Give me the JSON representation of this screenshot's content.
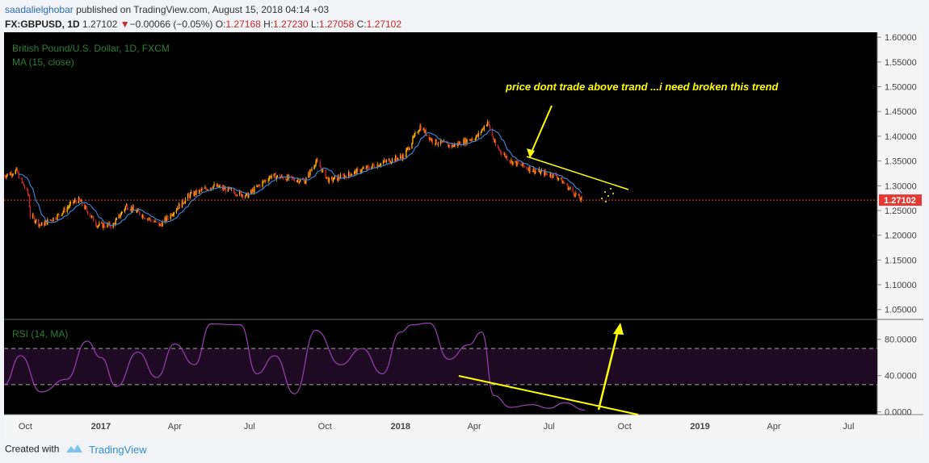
{
  "header": {
    "author": "saadalielghobar",
    "published": "published on TradingView.com, August 15, 2018 04:14 +03",
    "symbol": "FX:GBPUSD, 1D",
    "last": "1.27102",
    "change_arrow": "▼",
    "change": "−0.00066 (−0.05%)",
    "o_label": "O:",
    "o_value": "1.27168",
    "h_label": "H:",
    "h_value": "1.27230",
    "l_label": "L:",
    "l_value": "1.27058",
    "c_label": "C:",
    "c_value": "1.27102"
  },
  "legend": {
    "instrument": "British Pound/U.S. Dollar, 1D, FXCM",
    "ma": "MA (15, close)",
    "rsi": "RSI (14, MA)"
  },
  "annotation": {
    "text": "price dont trade above trand ...i need broken this trend"
  },
  "price_tag": "1.27102",
  "footer": {
    "created_with": "Created with",
    "brand": "TradingView"
  },
  "colors": {
    "background": "#000000",
    "up_candle": "#ffb300",
    "down_candle": "#c62828",
    "ma_line": "#3f7fd0",
    "rsi_line": "#9c3fb5",
    "rsi_band": "#1e0a22",
    "annotation": "#ffff00",
    "last_price": "#e53935"
  },
  "chart_data": [
    {
      "type": "candlestick",
      "title": "British Pound/U.S. Dollar, 1D, FXCM",
      "y_ticks": [
        "1.60000",
        "1.55000",
        "1.50000",
        "1.45000",
        "1.40000",
        "1.35000",
        "1.30000",
        "1.25000",
        "1.20000",
        "1.15000",
        "1.10000",
        "1.05000"
      ],
      "ylim": [
        1.03,
        1.61
      ],
      "x_ticks": [
        "Oct",
        "2017",
        "Apr",
        "Jul",
        "Oct",
        "2018",
        "Apr",
        "Jul",
        "Oct",
        "2019",
        "Apr",
        "Jul"
      ],
      "xlim": [
        "2016-09-05",
        "2019-08-05"
      ],
      "last_price": 1.27102,
      "series": [
        {
          "name": "GBPUSD",
          "x": [
            "2016-09-05",
            "2016-09-20",
            "2016-10-05",
            "2016-10-07",
            "2016-10-20",
            "2016-11-10",
            "2016-12-01",
            "2016-12-06",
            "2016-12-28",
            "2017-01-16",
            "2017-02-01",
            "2017-03-14",
            "2017-04-18",
            "2017-05-18",
            "2017-06-28",
            "2017-07-27",
            "2017-09-07",
            "2017-09-20",
            "2017-10-06",
            "2017-10-25",
            "2017-11-28",
            "2018-01-05",
            "2018-01-25",
            "2018-02-09",
            "2018-03-05",
            "2018-04-05",
            "2018-04-17",
            "2018-04-27",
            "2018-05-15",
            "2018-06-14",
            "2018-07-10",
            "2018-08-10"
          ],
          "values": [
            1.32,
            1.33,
            1.28,
            1.24,
            1.22,
            1.24,
            1.27,
            1.27,
            1.22,
            1.22,
            1.26,
            1.22,
            1.28,
            1.3,
            1.28,
            1.32,
            1.31,
            1.35,
            1.31,
            1.32,
            1.34,
            1.36,
            1.42,
            1.39,
            1.38,
            1.4,
            1.43,
            1.38,
            1.35,
            1.33,
            1.32,
            1.27
          ]
        }
      ],
      "ma": {
        "name": "MA (15, close)",
        "period": 15
      }
    },
    {
      "type": "line",
      "title": "RSI (14, MA)",
      "y_ticks": [
        "80.0000",
        "40.0000",
        "0.0000"
      ],
      "ylim": [
        -3,
        102
      ],
      "bands": [
        30,
        70
      ],
      "series": [
        {
          "name": "RSI",
          "x": [
            "2016-09-05",
            "2016-09-25",
            "2016-10-20",
            "2016-11-20",
            "2016-12-15",
            "2017-01-01",
            "2017-01-20",
            "2017-02-15",
            "2017-03-10",
            "2017-04-01",
            "2017-04-25",
            "2017-05-15",
            "2017-06-20",
            "2017-07-10",
            "2017-08-01",
            "2017-08-25",
            "2017-09-20",
            "2017-10-20",
            "2017-11-15",
            "2017-12-10",
            "2018-01-01",
            "2018-01-15",
            "2018-02-05",
            "2018-03-01",
            "2018-03-25",
            "2018-04-10",
            "2018-04-25",
            "2018-05-15",
            "2018-06-10",
            "2018-07-01",
            "2018-07-20",
            "2018-08-14"
          ],
          "values": [
            30,
            62,
            22,
            36,
            78,
            60,
            28,
            66,
            38,
            75,
            52,
            97,
            96,
            42,
            62,
            20,
            90,
            52,
            70,
            42,
            88,
            96,
            98,
            58,
            74,
            88,
            18,
            5,
            8,
            4,
            10,
            2
          ]
        }
      ]
    }
  ]
}
